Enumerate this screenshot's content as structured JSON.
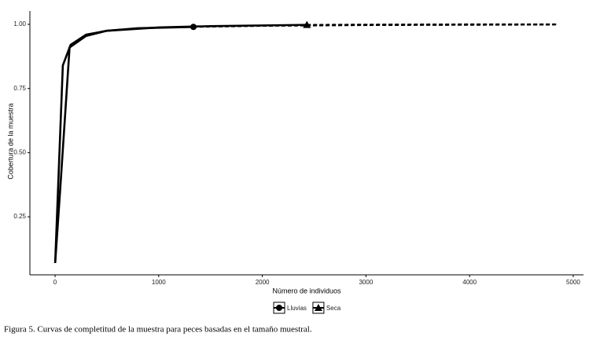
{
  "chart_data": {
    "type": "line",
    "xlabel": "Número de individuos",
    "ylabel": "Cobertura de la muestra",
    "caption": "Figura 5. Curvas de completitud de la muestra para peces basadas en el tamaño muestral.",
    "xlim": [
      -243,
      5099
    ],
    "ylim": [
      0.024,
      1.052
    ],
    "xticks": [
      0,
      1000,
      2000,
      3000,
      4000,
      5000
    ],
    "yticks": [
      0.25,
      {
        "value": 0.5,
        "label": "0.50"
      },
      0.75,
      {
        "value": 1,
        "label": "1.00"
      }
    ],
    "grid": false,
    "legend": "bottom",
    "series": [
      {
        "name": "Lluvias",
        "color": "#000000",
        "marker": "circle",
        "x": [
          1,
          75,
          150,
          300,
          500,
          800,
          1335
        ],
        "values": [
          0.07,
          0.84,
          0.92,
          0.96,
          0.975,
          0.985,
          0.99
        ],
        "extrapolated_x": [
          1335,
          2000,
          3000,
          4000,
          4830
        ],
        "extrapolated_values": [
          0.99,
          0.994,
          0.997,
          0.998,
          0.999
        ],
        "observed_x": 1335,
        "observed_value": 0.99
      },
      {
        "name": "Seca",
        "color": "#000000",
        "marker": "triangle",
        "x": [
          1,
          50,
          140,
          300,
          500,
          1000,
          1500,
          2430
        ],
        "values": [
          0.07,
          0.36,
          0.91,
          0.955,
          0.975,
          0.988,
          0.993,
          0.998
        ],
        "extrapolated_x": [
          2430,
          3000,
          4000,
          4850
        ],
        "extrapolated_values": [
          0.998,
          0.999,
          1.0,
          1.0
        ],
        "observed_x": 2430,
        "observed_value": 0.998
      }
    ]
  }
}
